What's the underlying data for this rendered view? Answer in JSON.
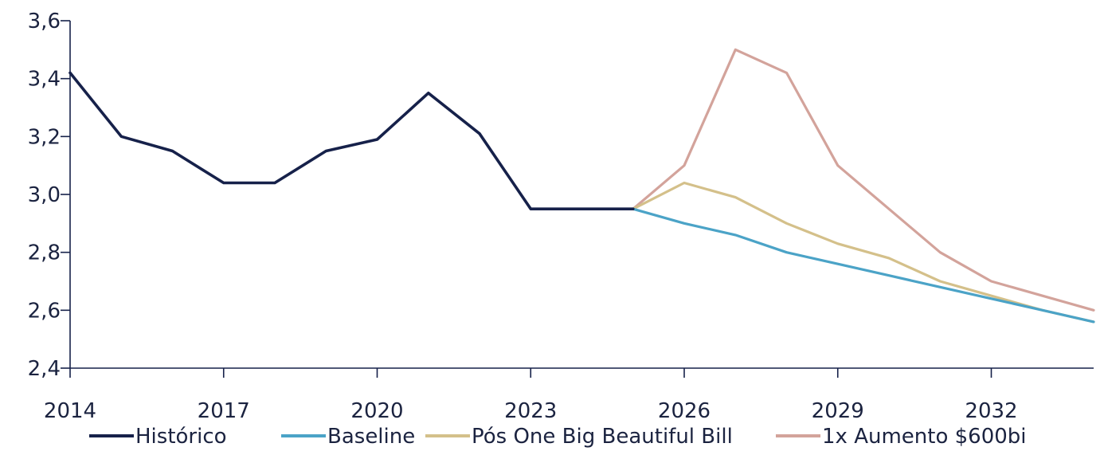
{
  "chart_data": {
    "type": "line",
    "title": "",
    "xlabel": "",
    "ylabel": "",
    "xlim": [
      2014,
      2034
    ],
    "ylim": [
      2.4,
      3.6
    ],
    "y_ticks": [
      "3,6",
      "3,4",
      "3,2",
      "3,0",
      "2,8",
      "2,6",
      "2,4"
    ],
    "y_tick_values": [
      3.6,
      3.4,
      3.2,
      3.0,
      2.8,
      2.6,
      2.4
    ],
    "x_ticks": [
      "2014",
      "2017",
      "2020",
      "2023",
      "2026",
      "2029",
      "2032"
    ],
    "x_tick_values": [
      2014,
      2017,
      2020,
      2023,
      2026,
      2029,
      2032
    ],
    "grid": false,
    "legend_position": "bottom",
    "series": [
      {
        "name": "Histórico",
        "color": "#16214a",
        "x": [
          2014,
          2015,
          2016,
          2017,
          2018,
          2019,
          2020,
          2021,
          2022,
          2023,
          2024,
          2025
        ],
        "values": [
          3.42,
          3.2,
          3.15,
          3.04,
          3.04,
          3.15,
          3.19,
          3.35,
          3.21,
          2.95,
          2.95,
          2.95
        ]
      },
      {
        "name": "Baseline",
        "color": "#4ba3c7",
        "x": [
          2025,
          2026,
          2027,
          2028,
          2029,
          2030,
          2031,
          2032,
          2033,
          2034
        ],
        "values": [
          2.95,
          2.9,
          2.86,
          2.8,
          2.76,
          2.72,
          2.68,
          2.64,
          2.6,
          2.56
        ]
      },
      {
        "name": "Pós One Big Beautiful Bill",
        "color": "#d4c08a",
        "x": [
          2025,
          2026,
          2027,
          2028,
          2029,
          2030,
          2031,
          2032,
          2033,
          2034
        ],
        "values": [
          2.95,
          3.04,
          2.99,
          2.9,
          2.83,
          2.78,
          2.7,
          2.65,
          2.6,
          2.56
        ]
      },
      {
        "name": "1x Aumento $600bi",
        "color": "#d3a39b",
        "x": [
          2025,
          2026,
          2027,
          2028,
          2029,
          2030,
          2031,
          2032,
          2033,
          2034
        ],
        "values": [
          2.95,
          3.1,
          3.5,
          3.42,
          3.1,
          2.95,
          2.8,
          2.7,
          2.65,
          2.6
        ]
      }
    ]
  }
}
